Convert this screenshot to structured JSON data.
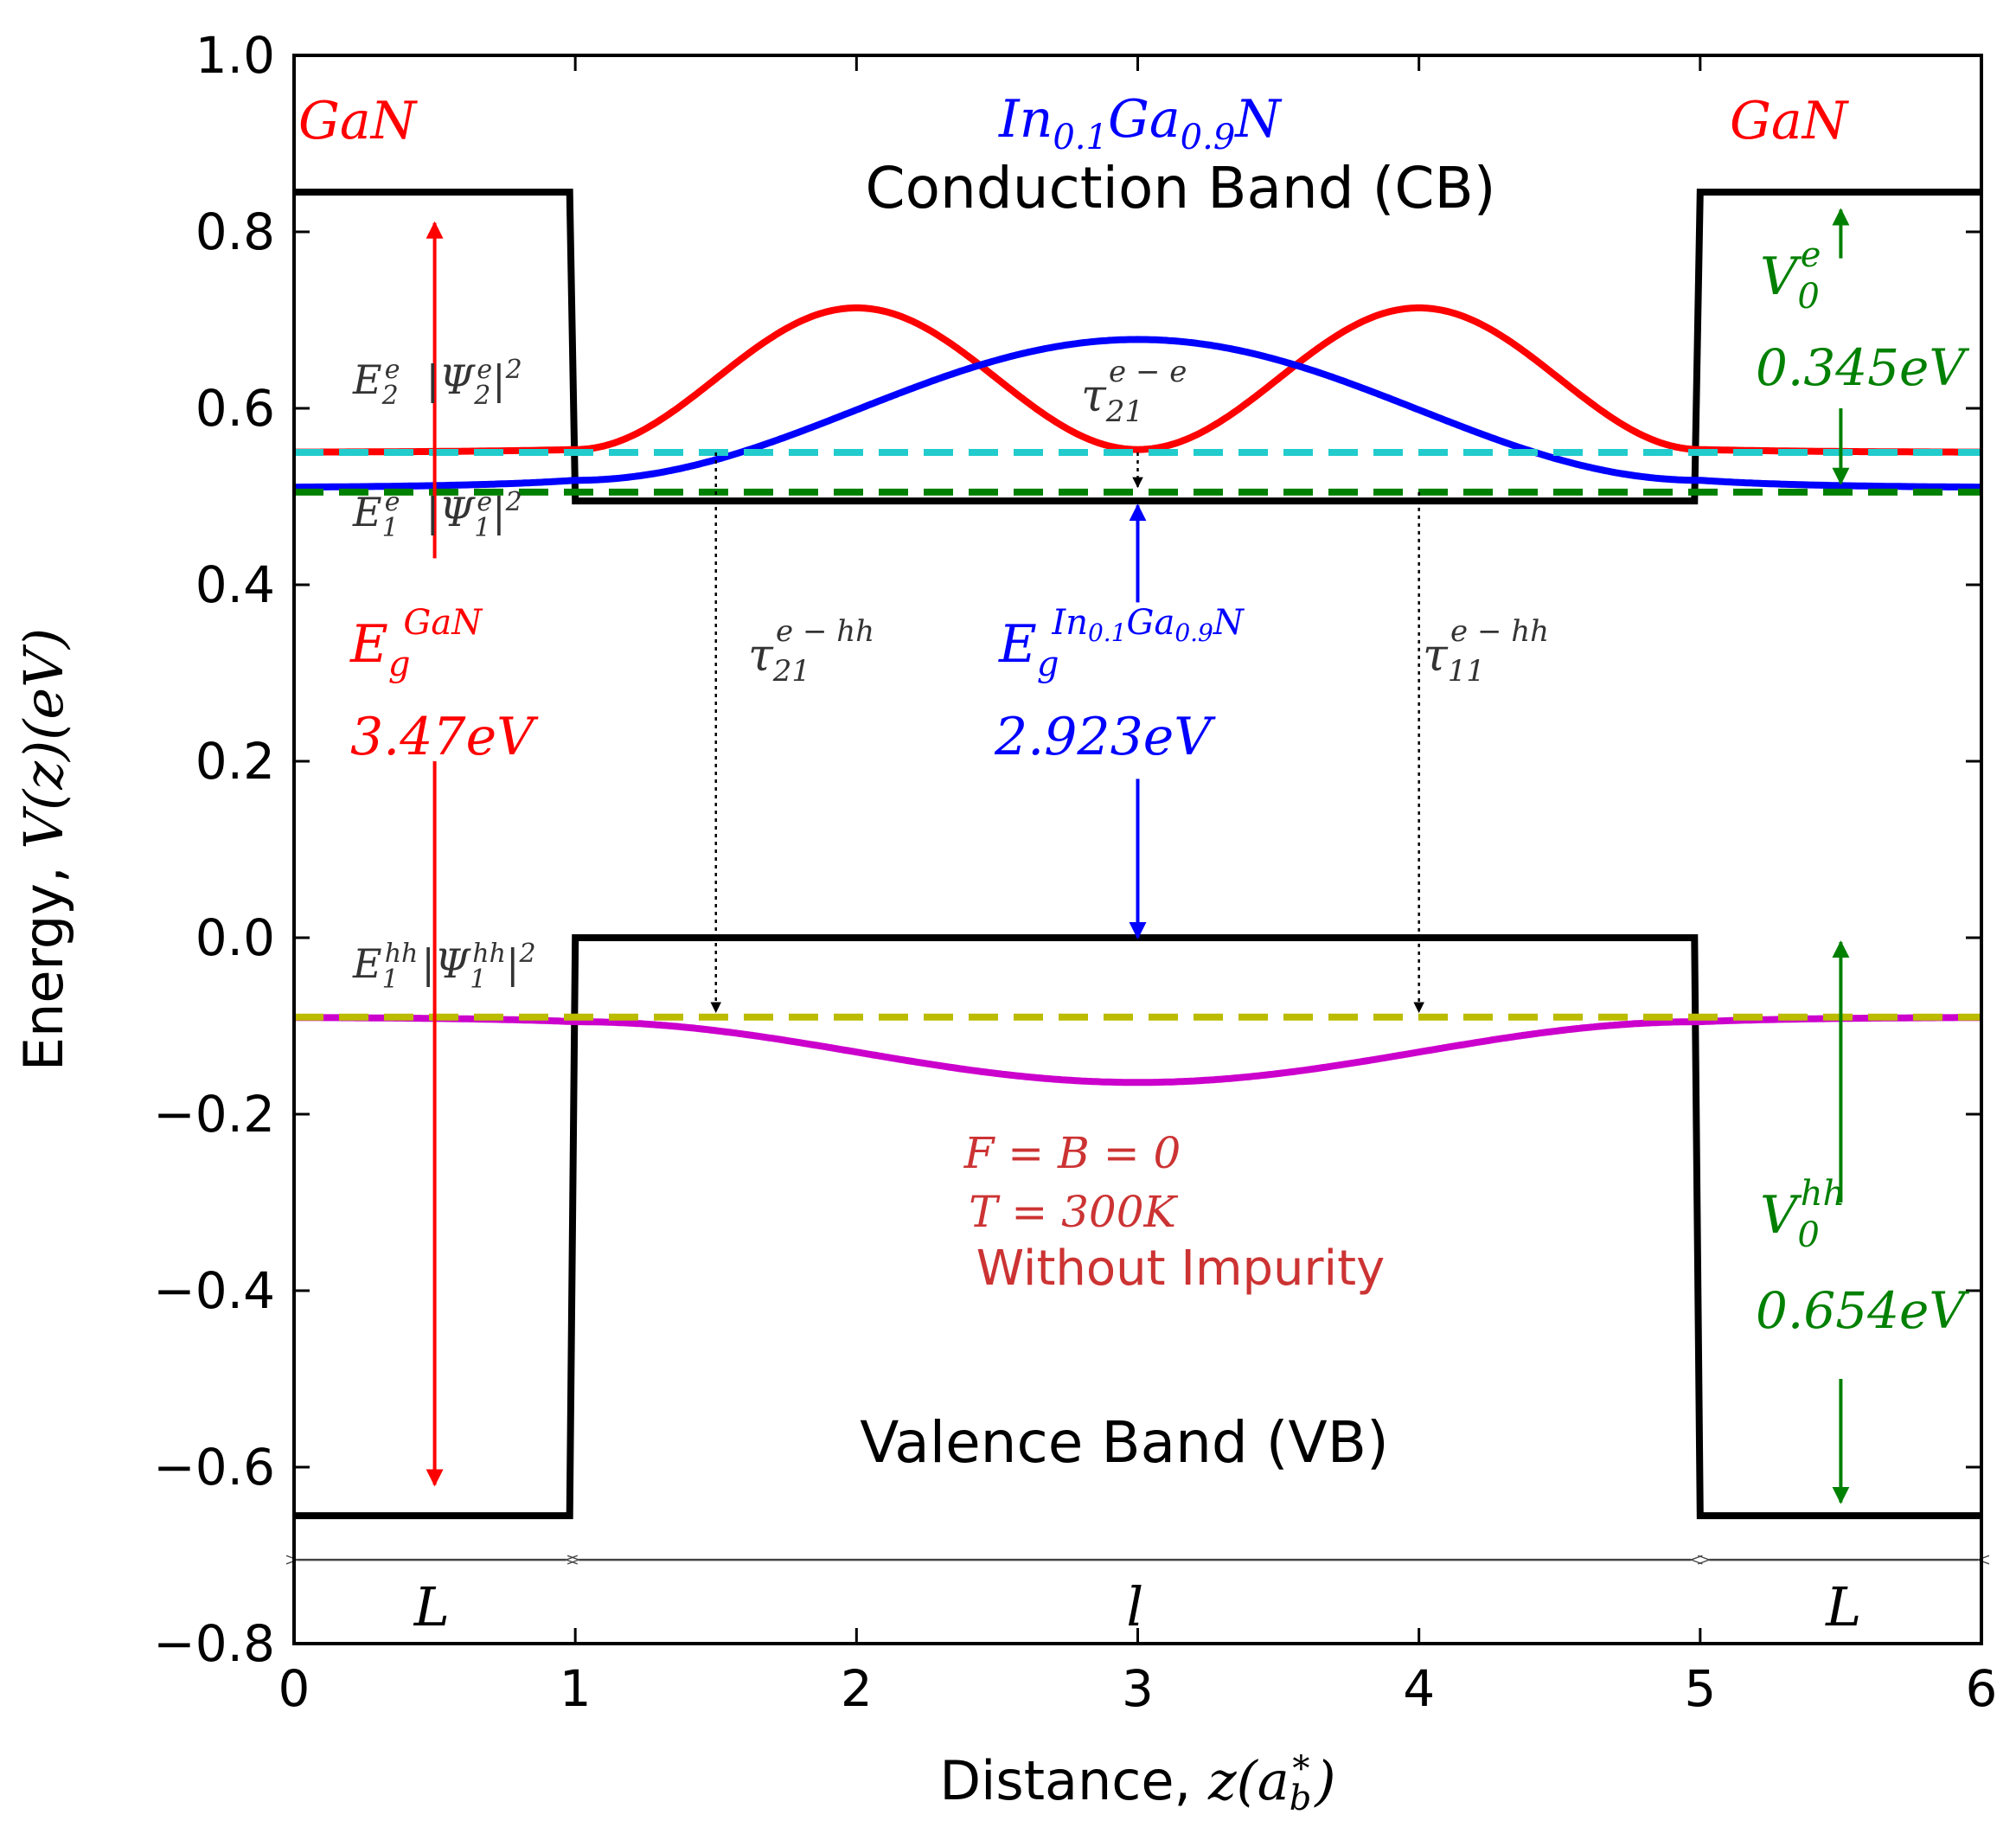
{
  "chart_data": {
    "type": "line",
    "title": "",
    "xlabel": "Distance, z(a_b^*)",
    "xlabel_prefix": "Distance, ",
    "xlabel_math": "z(a",
    "xlabel_math_sub": "b",
    "xlabel_math_sup": "*",
    "xlabel_math_close": ")",
    "ylabel": "Energy, V(z)(eV)",
    "ylabel_prefix": "Energy, ",
    "ylabel_math": "V(z)(eV)",
    "xlim": [
      0,
      6
    ],
    "ylim": [
      -0.8,
      1.0
    ],
    "xticks": [
      0,
      1,
      2,
      3,
      4,
      5,
      6
    ],
    "xtick_labels": [
      "0",
      "1",
      "2",
      "3",
      "4",
      "5",
      "6"
    ],
    "yticks": [
      1.0,
      0.8,
      0.6,
      0.4,
      0.2,
      0.0,
      -0.2,
      -0.4,
      -0.6,
      -0.8
    ],
    "ytick_labels": [
      "1.0",
      "0.8",
      "0.6",
      "0.4",
      "0.2",
      "0.0",
      "−0.2",
      "−0.4",
      "−0.6",
      "−0.8"
    ],
    "grid": false,
    "series": [
      {
        "name": "Conduction band potential",
        "color": "#000000",
        "style": "solid",
        "x": [
          0,
          0.98,
          1.0,
          4.98,
          5.0,
          6.0
        ],
        "y": [
          0.845,
          0.845,
          0.495,
          0.495,
          0.845,
          0.845
        ]
      },
      {
        "name": "Valence band potential",
        "color": "#000000",
        "style": "solid",
        "x": [
          0,
          0.98,
          1.0,
          4.98,
          5.0,
          6.0
        ],
        "y": [
          -0.655,
          -0.655,
          0.0,
          0.0,
          -0.655,
          -0.655
        ]
      },
      {
        "name": "|Ψ_2^e|^2",
        "color": "#ff0000",
        "style": "solid",
        "function": "psi2e",
        "base": 0.55,
        "amplitude": 0.163
      },
      {
        "name": "|Ψ_1^e|^2",
        "color": "#0000ff",
        "style": "solid",
        "function": "psi1e",
        "base": 0.51,
        "amplitude": 0.168
      },
      {
        "name": "|Ψ_1^hh|^2",
        "color": "#cc00cc",
        "style": "solid",
        "function": "psi1hh",
        "base": -0.09,
        "amplitude": -0.074
      },
      {
        "name": "E_2^e",
        "color": "#22cccc",
        "style": "dashed",
        "x": [
          0,
          6
        ],
        "y": [
          0.55,
          0.55
        ]
      },
      {
        "name": "E_1^e",
        "color": "#008000",
        "style": "dashed",
        "x": [
          0,
          6
        ],
        "y": [
          0.505,
          0.505
        ]
      },
      {
        "name": "E_1^hh",
        "color": "#bbbb00",
        "style": "dashed",
        "x": [
          0,
          6
        ],
        "y": [
          -0.09,
          -0.09
        ]
      }
    ],
    "transitions": [
      {
        "name": "tau21 e-e",
        "x": 3.0,
        "y_from": 0.55,
        "y_to": 0.505
      },
      {
        "name": "tau21 e-hh",
        "x": 1.5,
        "y_from": 0.55,
        "y_to": -0.09
      },
      {
        "name": "tau11 e-hh",
        "x": 4.0,
        "y_from": 0.505,
        "y_to": -0.09
      }
    ],
    "gap_arrows": [
      {
        "name": "Eg GaN",
        "color": "#ff0000",
        "x": 0.5,
        "y_top": 0.81,
        "y_bottom": -0.62,
        "text_top": 0.43,
        "text_bottom": 0.2
      },
      {
        "name": "Eg InGaN",
        "color": "#0000ff",
        "x": 3.0,
        "y_top": 0.49,
        "y_bottom": 0.0,
        "text_top": 0.38,
        "text_bottom": 0.18
      },
      {
        "name": "V0 e",
        "color": "#008000",
        "x": 5.5,
        "y_top": 0.825,
        "y_bottom": 0.515,
        "text_top": 0.77,
        "text_bottom": 0.6
      },
      {
        "name": "V0 hh",
        "color": "#008000",
        "x": 5.5,
        "y_top": -0.005,
        "y_bottom": -0.64,
        "text_top": -0.3,
        "text_bottom": -0.5
      }
    ],
    "width_arrows": [
      {
        "name": "L left",
        "x_from": 0.0,
        "x_to": 0.98,
        "y": -0.705,
        "label": "L",
        "label_y": -0.76
      },
      {
        "name": "l middle",
        "x_from": 1.0,
        "x_to": 4.98,
        "y": -0.705,
        "label": "l",
        "label_y": -0.76
      },
      {
        "name": "L right",
        "x_from": 5.02,
        "x_to": 6.0,
        "y": -0.705,
        "label": "L",
        "label_y": -0.76
      }
    ],
    "annotations": {
      "gan_left": "GaN",
      "gan_right": "GaN",
      "ingan_main": "In",
      "ingan_sub1": "0.1",
      "ingan_mid": "Ga",
      "ingan_sub2": "0.9",
      "ingan_end": "N",
      "cb_label": "Conduction Band (CB)",
      "vb_label": "Valence Band (VB)",
      "e2_label": "E",
      "e2_sub": "2",
      "e2_sup": "e",
      "psi2_label": "|Ψ",
      "psi2_sub": "2",
      "psi2_sup": "e",
      "psi_close": "|",
      "psi_pow": "2",
      "e1_label": "E",
      "e1_sub": "1",
      "e1_sup": "e",
      "psi1_label": "|Ψ",
      "psi1_sub": "1",
      "psi1_sup": "e",
      "ehh_label": "E",
      "ehh_sub": "1",
      "ehh_sup": "hh",
      "psihh_label": "|Ψ",
      "psihh_sub": "1",
      "psihh_sup": "hh",
      "tau_sym": "τ",
      "tau_ee_sub": "21",
      "tau_ee_sup": "e − e",
      "tau_ehh21_sub": "21",
      "tau_ehh21_sup": "e − hh",
      "tau_ehh11_sub": "11",
      "tau_ehh11_sup": "e − hh",
      "eg_sym": "E",
      "eg_sub": "g",
      "eg_gan_sup": "GaN",
      "eg_gan_value": "3.47eV",
      "eg_ingan_sup": "In",
      "eg_ingan_sup_sub1": "0.1",
      "eg_ingan_sup_mid": "Ga",
      "eg_ingan_sup_sub2": "0.9",
      "eg_ingan_sup_end": "N",
      "eg_ingan_value": "2.923eV",
      "v0_sym": "V",
      "v0_sub": "0",
      "v0e_sup": "e",
      "v0e_value": "0.345eV",
      "v0hh_sup": "hh",
      "v0hh_value": "0.654eV",
      "cond_fb": "F = B = 0",
      "cond_t": "T = 300K",
      "cond_imp": "Without Impurity"
    },
    "colors": {
      "gan": "#ff0000",
      "ingan": "#0000ff",
      "v0": "#008000",
      "conditions": "#cc3333",
      "dark_label": "#333333"
    }
  }
}
